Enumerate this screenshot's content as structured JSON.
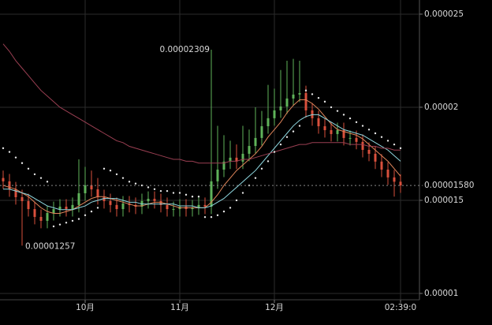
{
  "chart_data": {
    "type": "candlestick",
    "categories": [
      null,
      null,
      null,
      null,
      null,
      null,
      null,
      null,
      null,
      null,
      null,
      null,
      null,
      "10月",
      null,
      null,
      null,
      null,
      null,
      null,
      null,
      null,
      null,
      null,
      null,
      null,
      null,
      null,
      "11月",
      null,
      null,
      null,
      null,
      null,
      null,
      null,
      null,
      null,
      null,
      null,
      null,
      null,
      null,
      "12月",
      null,
      null,
      null,
      null,
      null,
      null,
      null,
      null,
      null,
      null,
      null,
      null,
      null,
      null,
      null,
      null,
      null,
      null,
      null,
      "02:39:0"
    ],
    "open": [
      1.62e-05,
      1.602e-05,
      1.559e-05,
      1.517e-05,
      1.496e-05,
      1.453e-05,
      1.411e-05,
      1.39e-05,
      1.432e-05,
      1.453e-05,
      1.466e-05,
      1.453e-05,
      1.475e-05,
      1.538e-05,
      1.581e-05,
      1.559e-05,
      1.517e-05,
      1.496e-05,
      1.475e-05,
      1.453e-05,
      1.483e-05,
      1.475e-05,
      1.466e-05,
      1.496e-05,
      1.508e-05,
      1.496e-05,
      1.475e-05,
      1.453e-05,
      1.453e-05,
      1.466e-05,
      1.453e-05,
      1.462e-05,
      1.475e-05,
      1.466e-05,
      1.602e-05,
      1.665e-05,
      1.708e-05,
      1.729e-05,
      1.708e-05,
      1.75e-05,
      1.792e-05,
      1.835e-05,
      1.898e-05,
      1.941e-05,
      1.983e-05,
      2.004e-05,
      2.047e-05,
      2.068e-05,
      2.076e-05,
      1.983e-05,
      1.941e-05,
      1.898e-05,
      1.877e-05,
      1.856e-05,
      1.877e-05,
      1.835e-05,
      1.835e-05,
      1.814e-05,
      1.771e-05,
      1.75e-05,
      1.708e-05,
      1.665e-05,
      1.623e-05,
      1.6e-05
    ],
    "high": [
      1.66e-05,
      1.642e-05,
      1.599e-05,
      1.557e-05,
      1.536e-05,
      1.493e-05,
      1.451e-05,
      1.472e-05,
      1.493e-05,
      1.506e-05,
      1.506e-05,
      1.515e-05,
      1.72e-05,
      1.68e-05,
      1.66e-05,
      1.62e-05,
      1.557e-05,
      1.536e-05,
      1.515e-05,
      1.523e-05,
      1.523e-05,
      1.515e-05,
      1.536e-05,
      1.548e-05,
      1.548e-05,
      1.536e-05,
      1.515e-05,
      1.493e-05,
      1.506e-05,
      1.506e-05,
      1.502e-05,
      1.515e-05,
      1.515e-05,
      2.309e-05,
      1.9e-05,
      1.85e-05,
      1.82e-05,
      1.8e-05,
      1.9e-05,
      1.88e-05,
      2e-05,
      1.98e-05,
      2.12e-05,
      2.1e-05,
      2.2e-05,
      2.25e-05,
      2.26e-05,
      2.25e-05,
      2.116e-05,
      2.023e-05,
      1.981e-05,
      1.938e-05,
      1.917e-05,
      1.917e-05,
      1.917e-05,
      1.875e-05,
      1.875e-05,
      1.854e-05,
      1.811e-05,
      1.79e-05,
      1.748e-05,
      1.705e-05,
      1.663e-05,
      1.64e-05
    ],
    "low": [
      1.562e-05,
      1.519e-05,
      1.477e-05,
      1.257e-05,
      1.413e-05,
      1.371e-05,
      1.35e-05,
      1.35e-05,
      1.392e-05,
      1.413e-05,
      1.413e-05,
      1.413e-05,
      1.435e-05,
      1.498e-05,
      1.519e-05,
      1.477e-05,
      1.456e-05,
      1.435e-05,
      1.413e-05,
      1.413e-05,
      1.435e-05,
      1.426e-05,
      1.426e-05,
      1.456e-05,
      1.456e-05,
      1.435e-05,
      1.413e-05,
      1.413e-05,
      1.413e-05,
      1.413e-05,
      1.413e-05,
      1.422e-05,
      1.426e-05,
      1.426e-05,
      1.562e-05,
      1.625e-05,
      1.668e-05,
      1.668e-05,
      1.668e-05,
      1.71e-05,
      1.752e-05,
      1.795e-05,
      1.858e-05,
      1.901e-05,
      1.943e-05,
      1.964e-05,
      2.007e-05,
      2.028e-05,
      1.943e-05,
      1.901e-05,
      1.858e-05,
      1.837e-05,
      1.816e-05,
      1.816e-05,
      1.795e-05,
      1.795e-05,
      1.774e-05,
      1.731e-05,
      1.71e-05,
      1.668e-05,
      1.625e-05,
      1.583e-05,
      1.52e-05,
      1.54e-05
    ],
    "close": [
      1.602e-05,
      1.559e-05,
      1.517e-05,
      1.496e-05,
      1.453e-05,
      1.411e-05,
      1.39e-05,
      1.432e-05,
      1.453e-05,
      1.466e-05,
      1.453e-05,
      1.475e-05,
      1.538e-05,
      1.581e-05,
      1.559e-05,
      1.517e-05,
      1.496e-05,
      1.475e-05,
      1.453e-05,
      1.483e-05,
      1.475e-05,
      1.466e-05,
      1.496e-05,
      1.508e-05,
      1.496e-05,
      1.475e-05,
      1.453e-05,
      1.453e-05,
      1.466e-05,
      1.453e-05,
      1.462e-05,
      1.475e-05,
      1.466e-05,
      1.602e-05,
      1.665e-05,
      1.708e-05,
      1.729e-05,
      1.708e-05,
      1.75e-05,
      1.792e-05,
      1.835e-05,
      1.898e-05,
      1.941e-05,
      1.983e-05,
      2.004e-05,
      2.047e-05,
      2.068e-05,
      2.076e-05,
      1.983e-05,
      1.941e-05,
      1.898e-05,
      1.877e-05,
      1.856e-05,
      1.877e-05,
      1.835e-05,
      1.835e-05,
      1.814e-05,
      1.771e-05,
      1.75e-05,
      1.708e-05,
      1.665e-05,
      1.623e-05,
      1.6e-05,
      1.58e-05
    ],
    "up_color": "#5fb35a",
    "down_color": "#d9503c",
    "series": [
      {
        "style": "line",
        "color": "#e0855a",
        "values": [
          1.58e-05,
          1.57e-05,
          1.56e-05,
          1.54e-05,
          1.52e-05,
          1.49e-05,
          1.46e-05,
          1.44e-05,
          1.43e-05,
          1.43e-05,
          1.44e-05,
          1.45e-05,
          1.47e-05,
          1.49e-05,
          1.51e-05,
          1.52e-05,
          1.52e-05,
          1.51e-05,
          1.5e-05,
          1.49e-05,
          1.48e-05,
          1.47e-05,
          1.47e-05,
          1.48e-05,
          1.49e-05,
          1.49e-05,
          1.48e-05,
          1.47e-05,
          1.46e-05,
          1.46e-05,
          1.46e-05,
          1.46e-05,
          1.46e-05,
          1.49e-05,
          1.53e-05,
          1.58e-05,
          1.62e-05,
          1.66e-05,
          1.69e-05,
          1.72e-05,
          1.75e-05,
          1.79e-05,
          1.84e-05,
          1.88e-05,
          1.92e-05,
          1.97e-05,
          2.01e-05,
          2.04e-05,
          2.04e-05,
          2.02e-05,
          1.99e-05,
          1.95e-05,
          1.91e-05,
          1.88e-05,
          1.87e-05,
          1.86e-05,
          1.85e-05,
          1.83e-05,
          1.8e-05,
          1.77e-05,
          1.74e-05,
          1.71e-05,
          1.67e-05,
          1.63e-05
        ]
      },
      {
        "style": "line",
        "color": "#8fd8e0",
        "values": [
          1.56e-05,
          1.56e-05,
          1.55e-05,
          1.54e-05,
          1.53e-05,
          1.51e-05,
          1.49e-05,
          1.47e-05,
          1.46e-05,
          1.45e-05,
          1.45e-05,
          1.45e-05,
          1.46e-05,
          1.47e-05,
          1.49e-05,
          1.5e-05,
          1.51e-05,
          1.51e-05,
          1.51e-05,
          1.5e-05,
          1.49e-05,
          1.49e-05,
          1.48e-05,
          1.48e-05,
          1.48e-05,
          1.48e-05,
          1.48e-05,
          1.48e-05,
          1.47e-05,
          1.47e-05,
          1.47e-05,
          1.46e-05,
          1.46e-05,
          1.47e-05,
          1.49e-05,
          1.51e-05,
          1.54e-05,
          1.57e-05,
          1.6e-05,
          1.63e-05,
          1.66e-05,
          1.7e-05,
          1.74e-05,
          1.78e-05,
          1.82e-05,
          1.86e-05,
          1.9e-05,
          1.93e-05,
          1.95e-05,
          1.96e-05,
          1.96e-05,
          1.94e-05,
          1.92e-05,
          1.9e-05,
          1.88e-05,
          1.87e-05,
          1.86e-05,
          1.85e-05,
          1.83e-05,
          1.81e-05,
          1.79e-05,
          1.77e-05,
          1.74e-05,
          1.71e-05
        ]
      },
      {
        "style": "line",
        "color": "#9a3f52",
        "values": [
          2.34e-05,
          2.3e-05,
          2.25e-05,
          2.21e-05,
          2.17e-05,
          2.13e-05,
          2.09e-05,
          2.06e-05,
          2.03e-05,
          2e-05,
          1.98e-05,
          1.96e-05,
          1.94e-05,
          1.92e-05,
          1.9e-05,
          1.88e-05,
          1.86e-05,
          1.84e-05,
          1.82e-05,
          1.81e-05,
          1.79e-05,
          1.78e-05,
          1.77e-05,
          1.76e-05,
          1.75e-05,
          1.74e-05,
          1.73e-05,
          1.72e-05,
          1.72e-05,
          1.71e-05,
          1.71e-05,
          1.7e-05,
          1.7e-05,
          1.7e-05,
          1.7e-05,
          1.7e-05,
          1.71e-05,
          1.71e-05,
          1.72e-05,
          1.72e-05,
          1.73e-05,
          1.74e-05,
          1.75e-05,
          1.76e-05,
          1.77e-05,
          1.78e-05,
          1.79e-05,
          1.8e-05,
          1.8e-05,
          1.81e-05,
          1.81e-05,
          1.81e-05,
          1.81e-05,
          1.81e-05,
          1.81e-05,
          1.8e-05,
          1.8e-05,
          1.8e-05,
          1.79e-05,
          1.79e-05,
          1.78e-05,
          1.78e-05,
          1.77e-05,
          1.77e-05
        ]
      },
      {
        "style": "dots",
        "color": "#e8e8e8",
        "values": [
          1.78e-05,
          1.76e-05,
          1.73e-05,
          1.7e-05,
          1.67e-05,
          1.64e-05,
          1.62e-05,
          1.6e-05,
          1.36e-05,
          1.37e-05,
          1.38e-05,
          1.39e-05,
          1.4e-05,
          1.42e-05,
          1.44e-05,
          1.46e-05,
          1.67e-05,
          1.66e-05,
          1.64e-05,
          1.62e-05,
          1.6e-05,
          1.59e-05,
          1.58e-05,
          1.57e-05,
          1.56e-05,
          1.55e-05,
          1.55e-05,
          1.54e-05,
          1.54e-05,
          1.53e-05,
          1.52e-05,
          1.52e-05,
          1.41e-05,
          1.41e-05,
          1.42e-05,
          1.44e-05,
          1.46e-05,
          1.5e-05,
          1.54e-05,
          1.58e-05,
          1.62e-05,
          1.67e-05,
          1.71e-05,
          1.76e-05,
          1.8e-05,
          1.84e-05,
          1.87e-05,
          1.9e-05,
          2.09e-05,
          2.07e-05,
          2.05e-05,
          2.03e-05,
          2e-05,
          1.98e-05,
          1.96e-05,
          1.94e-05,
          1.92e-05,
          1.9e-05,
          1.88e-05,
          1.86e-05,
          1.84e-05,
          1.82e-05,
          1.8e-05,
          1.78e-05
        ]
      }
    ],
    "price_line": {
      "value": 1.58e-05,
      "label": "0.00001580"
    },
    "ylim": [
      9.66e-06,
      2.576e-05
    ],
    "yticks": [
      1e-05,
      1.5e-05,
      2e-05,
      2.5e-05
    ],
    "grid": true
  }
}
